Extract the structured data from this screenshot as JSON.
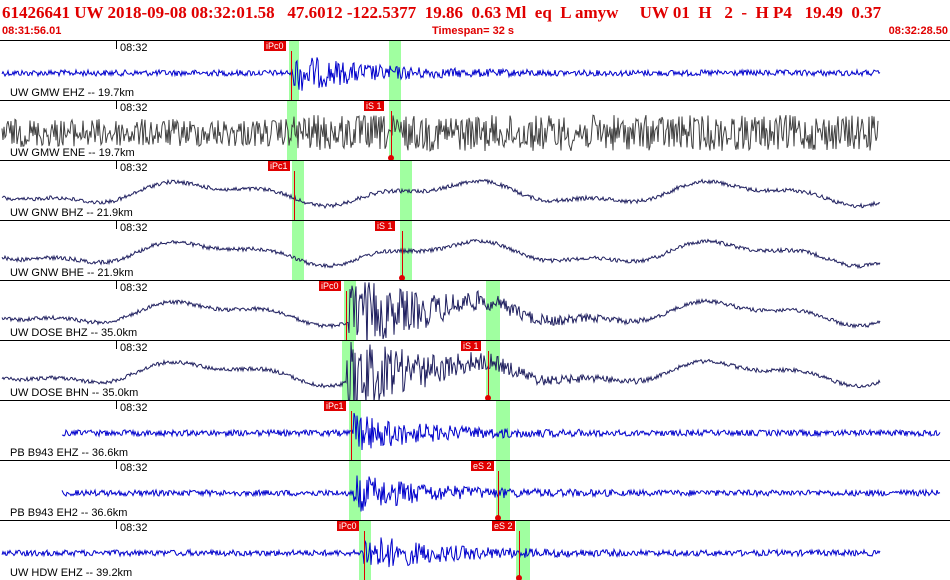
{
  "header": {
    "event_line": "61426641 UW 2018-09-08 08:32:01.58   47.6012 -122.5377  19.86  0.63 Ml  eq  L amyw     UW 01  H   2  -  H P4   19.49  0.37",
    "start_time": "08:31:56.01",
    "timespan": "Timespan=  32 s",
    "end_time": "08:32:28.50"
  },
  "colors": {
    "header_text": "#e00000",
    "pick": "#e00000",
    "pick_window": "#80ff80",
    "trace_blue": "#0000cc",
    "trace_navy": "#202060",
    "trace_gray": "#404040"
  },
  "panels": [
    {
      "tick": "08:32",
      "label": "UW GMW EHZ -- 19.7km",
      "trace_color": "#0000cc",
      "trace_kind": "noise_event",
      "green_bands": [
        {
          "x": 289,
          "w": 10
        },
        {
          "x": 389,
          "w": 12
        }
      ],
      "picks": [
        {
          "label": "iPc0",
          "x": 264,
          "line_x": 291
        }
      ]
    },
    {
      "tick": "08:32",
      "label": "UW GMW ENE -- 19.7km",
      "trace_color": "#404040",
      "trace_kind": "noisy",
      "green_bands": [
        {
          "x": 287,
          "w": 10
        },
        {
          "x": 389,
          "w": 12
        }
      ],
      "picks": [
        {
          "label": "iS 1",
          "x": 364,
          "line_x": 391
        }
      ]
    },
    {
      "tick": "08:32",
      "label": "UW GNW BHZ -- 21.9km",
      "trace_color": "#202060",
      "trace_kind": "swell",
      "green_bands": [
        {
          "x": 292,
          "w": 12
        },
        {
          "x": 400,
          "w": 12
        }
      ],
      "picks": [
        {
          "label": "iPc1",
          "x": 268,
          "line_x": 294
        }
      ]
    },
    {
      "tick": "08:32",
      "label": "UW GNW BHE -- 21.9km",
      "trace_color": "#202060",
      "trace_kind": "swell",
      "green_bands": [
        {
          "x": 292,
          "w": 12
        },
        {
          "x": 400,
          "w": 12
        }
      ],
      "picks": [
        {
          "label": "iS 1",
          "x": 375,
          "line_x": 402
        }
      ]
    },
    {
      "tick": "08:32",
      "label": "UW DOSE BHZ -- 35.0km",
      "trace_color": "#202060",
      "trace_kind": "swell_event",
      "green_bands": [
        {
          "x": 344,
          "w": 12
        },
        {
          "x": 486,
          "w": 14
        }
      ],
      "picks": [
        {
          "label": "iPc0",
          "x": 319,
          "line_x": 346
        }
      ]
    },
    {
      "tick": "08:32",
      "label": "UW DOSE BHN -- 35.0km",
      "trace_color": "#202060",
      "trace_kind": "swell_event",
      "green_bands": [
        {
          "x": 342,
          "w": 12
        },
        {
          "x": 486,
          "w": 14
        }
      ],
      "picks": [
        {
          "label": "iS 1",
          "x": 461,
          "line_x": 488
        }
      ]
    },
    {
      "tick": "08:32",
      "label": "PB B943 EHZ -- 36.6km",
      "trace_color": "#0000cc",
      "trace_kind": "noise_event_short",
      "green_bands": [
        {
          "x": 349,
          "w": 12
        },
        {
          "x": 496,
          "w": 14
        }
      ],
      "picks": [
        {
          "label": "iPc1",
          "x": 324,
          "line_x": 351
        }
      ]
    },
    {
      "tick": "08:32",
      "label": "PB B943 EH2 -- 36.6km",
      "trace_color": "#0000cc",
      "trace_kind": "noise_event_short",
      "green_bands": [
        {
          "x": 349,
          "w": 12
        },
        {
          "x": 496,
          "w": 14
        }
      ],
      "picks": [
        {
          "label": "eS 2",
          "x": 471,
          "line_x": 498
        }
      ]
    },
    {
      "tick": "08:32",
      "label": "UW HDW EHZ -- 39.2km",
      "trace_color": "#0000cc",
      "trace_kind": "noise_event",
      "green_bands": [
        {
          "x": 359,
          "w": 12
        },
        {
          "x": 516,
          "w": 14
        }
      ],
      "picks": [
        {
          "label": "iPc0",
          "x": 337,
          "line_x": 364
        },
        {
          "label": "eS 2",
          "x": 492,
          "line_x": 519
        }
      ]
    }
  ]
}
